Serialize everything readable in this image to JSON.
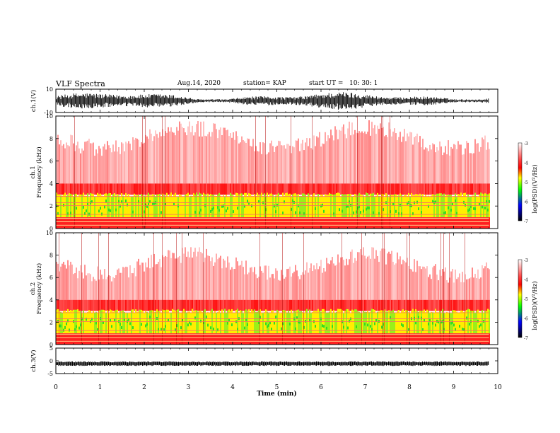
{
  "header": {
    "title": "VLF Spectra",
    "date": "Aug.14, 2020",
    "station": "station= KAP",
    "start": "start UT =",
    "start_time": "10: 30: 1"
  },
  "colors": {
    "background": "#ffffff",
    "waveform": "#000000",
    "colorbar_stops": [
      "#ffffff",
      "#ff0000",
      "#ffff00",
      "#00ff00",
      "#0000ff",
      "#000000"
    ]
  },
  "chart_data": [
    {
      "type": "line",
      "name": "ch1-waveform",
      "ylabel": "ch.1(V)",
      "ylim": [
        -10,
        10
      ],
      "y_ticks": [
        "10",
        "-10"
      ],
      "xlim": [
        0,
        10
      ],
      "data_extent": [
        0,
        9.8
      ]
    },
    {
      "type": "heatmap",
      "name": "ch1-spectrogram",
      "ylabel_channel": "ch.1",
      "ylabel": "Frequency (kHz)",
      "ylim": [
        0,
        10
      ],
      "y_ticks": [
        "0",
        "2",
        "4",
        "6",
        "8",
        "10"
      ],
      "xlim": [
        0,
        10
      ],
      "data_extent": [
        0,
        9.8
      ],
      "colorbar": {
        "label": "log(PSD)(V²/Hz)",
        "range": [
          -7,
          -3
        ],
        "ticks": [
          "-3",
          "-4",
          "-5",
          "-6",
          "-7"
        ]
      }
    },
    {
      "type": "heatmap",
      "name": "ch2-spectrogram",
      "ylabel_channel": "ch.2",
      "ylabel": "Frequency (kHz)",
      "ylim": [
        0,
        10
      ],
      "y_ticks": [
        "0",
        "2",
        "4",
        "6",
        "8",
        "10"
      ],
      "xlim": [
        0,
        10
      ],
      "data_extent": [
        0,
        9.8
      ],
      "colorbar": {
        "label": "log(PSD)(V²/Hz)",
        "range": [
          -7,
          -3
        ],
        "ticks": [
          "-3",
          "-4",
          "-5",
          "-6",
          "-7"
        ]
      }
    },
    {
      "type": "line",
      "name": "ch3-waveform",
      "ylabel": "ch.3(V)",
      "ylim": [
        -5,
        5
      ],
      "y_ticks": [
        "5",
        "0",
        "-5"
      ],
      "xlim": [
        0,
        10
      ],
      "data_extent": [
        0,
        9.8
      ],
      "xlabel": "Time (min)",
      "x_ticks": [
        "0",
        "1",
        "2",
        "3",
        "4",
        "5",
        "6",
        "7",
        "8",
        "9",
        "10"
      ]
    }
  ]
}
